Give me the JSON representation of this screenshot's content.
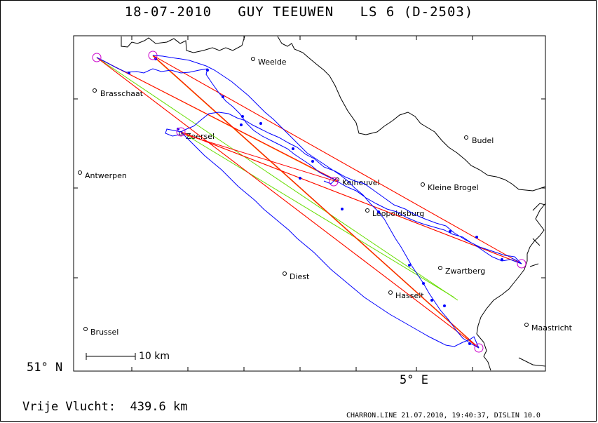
{
  "title": {
    "date": "18-07-2010",
    "pilot": "GUY TEEUWEN",
    "glider": "LS 6 (D-2503)"
  },
  "axes": {
    "latitude_label": "51° N",
    "longitude_label": "5° E"
  },
  "scale_bar": {
    "label": "10 km"
  },
  "summary": {
    "distance_label": "Vrije Vlucht:",
    "distance_value": "439.6 km"
  },
  "footer": "CHARRON.LINE 21.07.2010, 19:40:37, DISLIN 10.0",
  "towns": [
    {
      "name": "Weelde"
    },
    {
      "name": "Brasschaat"
    },
    {
      "name": "Zoersel"
    },
    {
      "name": "Budel"
    },
    {
      "name": "Antwerpen"
    },
    {
      "name": "Keiheuvel"
    },
    {
      "name": "Kleine Brogel"
    },
    {
      "name": "Leopoldsburg"
    },
    {
      "name": "Diest"
    },
    {
      "name": "Zwartberg"
    },
    {
      "name": "Hasselt"
    },
    {
      "name": "Maastricht"
    },
    {
      "name": "Brussel"
    }
  ],
  "colors": {
    "track": "#0000ff",
    "task_leg": "#ff0000",
    "olc_leg": "#ff8c00",
    "alt_leg": "#66dd00",
    "turnpoint": "#cc00cc",
    "border": "#000000"
  }
}
